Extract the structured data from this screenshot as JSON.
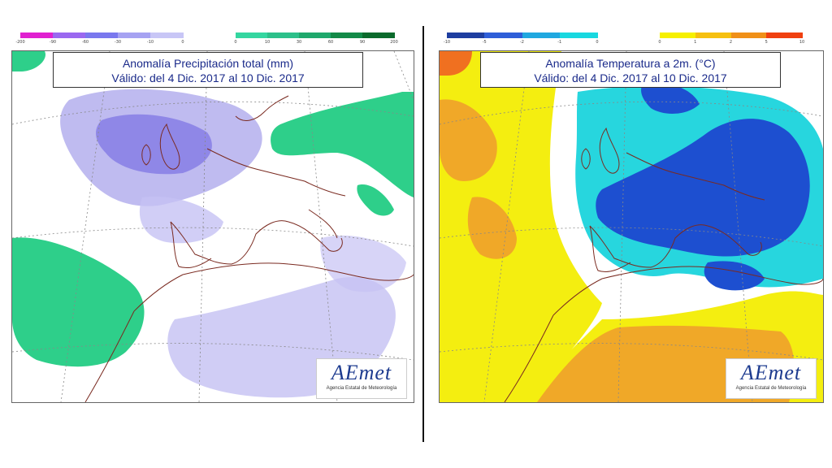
{
  "precip": {
    "title_line1": "Anomalía Precipitación total (mm)",
    "title_line2": "Válido: del 4 Dic. 2017 al 10 Dic. 2017",
    "legend_negative": {
      "ticks": [
        "-200",
        "-90",
        "-60",
        "-30",
        "-10",
        "0"
      ],
      "colors": [
        "#e020d0",
        "#9a68f0",
        "#7a78ee",
        "#a6a2f2",
        "#c8c6f6"
      ]
    },
    "legend_positive": {
      "ticks": [
        "0",
        "10",
        "30",
        "60",
        "90",
        "200"
      ],
      "colors": [
        "#34d6a0",
        "#2cc08a",
        "#1fa86c",
        "#138a48",
        "#0b6a2c"
      ]
    }
  },
  "temp": {
    "title_line1": "Anomalía Temperatura a 2m. (°C)",
    "title_line2": "Válido: del 4 Dic. 2017 al 10 Dic. 2017",
    "legend_negative": {
      "ticks": [
        "-10",
        "-5",
        "-2",
        "-1",
        "0"
      ],
      "colors": [
        "#1e3ea0",
        "#2e5ed8",
        "#20a8e0",
        "#18d8e0"
      ]
    },
    "legend_positive": {
      "ticks": [
        "0",
        "1",
        "2",
        "5",
        "10"
      ],
      "colors": [
        "#f6f000",
        "#f6c010",
        "#f09018",
        "#f04010"
      ]
    }
  },
  "logo": {
    "mark": "AEmet",
    "subtitle": "Agencia Estatal de Meteorología"
  },
  "colors": {
    "precip_dry": "#b8b4ee",
    "precip_dry_dark": "#8a82e6",
    "precip_wet": "#2ecf8a",
    "temp_cold": "#1d4fd0",
    "temp_cool": "#27d6de",
    "temp_warm": "#f4ee10",
    "temp_hot": "#f0a828",
    "coast": "#7a2a20"
  }
}
